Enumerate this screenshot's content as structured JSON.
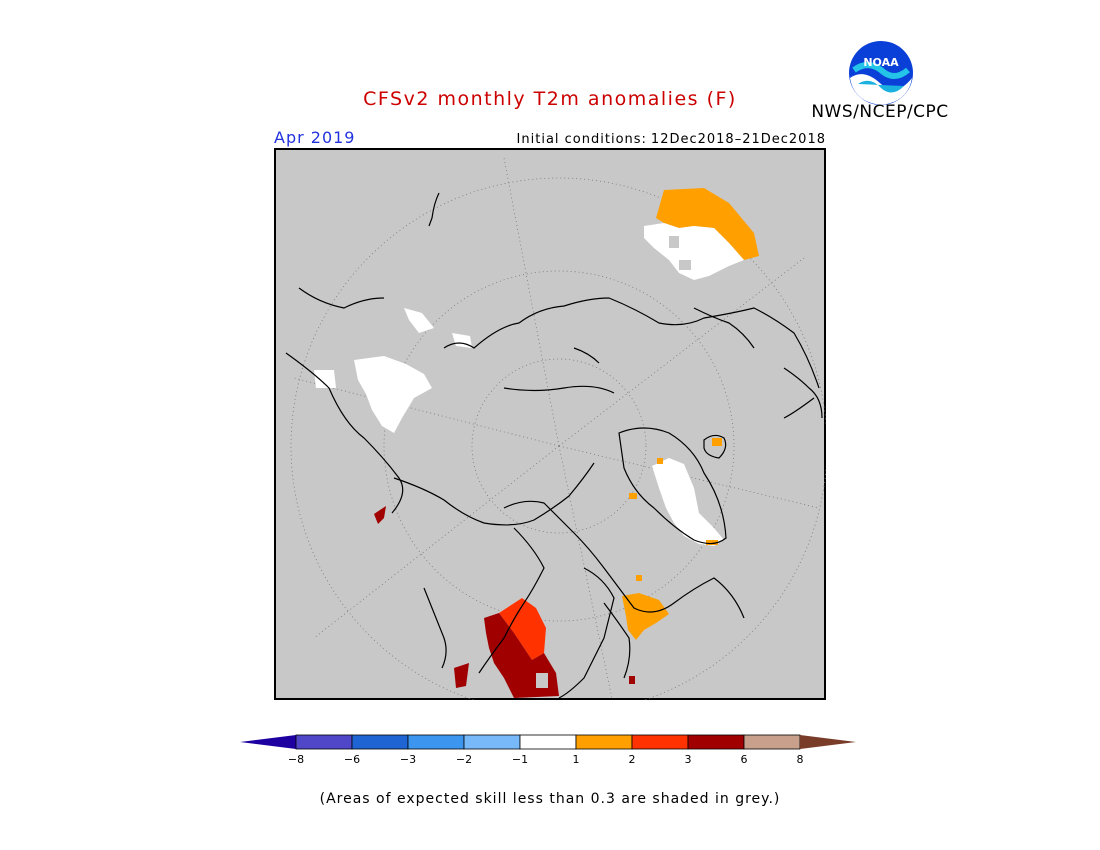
{
  "header": {
    "title": "CFSv2 monthly T2m anomalies (F)",
    "organization": "NWS/NCEP/CPC",
    "period": "Apr 2019",
    "initial_conditions_label": "Initial conditions:",
    "initial_conditions_value": "12Dec2018–21Dec2018"
  },
  "logo": {
    "text": "NOAA",
    "icon": "noaa-logo-icon"
  },
  "map": {
    "projection": "north-polar-stereographic",
    "background_color": "#c8c8c8",
    "outline_color": "#000000",
    "grid": "dotted latitude/longitude circles",
    "anomaly_regions": [
      {
        "region": "Eastern Siberia",
        "category": "1 to 2",
        "color": "#ffa000"
      },
      {
        "region": "Eastern Siberia",
        "category": "-1 to 1",
        "color": "#ffffff"
      },
      {
        "region": "Greenland",
        "category": "-1 to 1",
        "color": "#ffffff"
      },
      {
        "region": "Iceland",
        "category": "1 to 2",
        "color": "#ffa000"
      },
      {
        "region": "Hudson Bay",
        "category": "1 to 2",
        "color": "#ffa000"
      },
      {
        "region": "Western Canada / Alaska",
        "category": "-1 to 1",
        "color": "#ffffff"
      },
      {
        "region": "US Southwest",
        "category": "3 to 6",
        "color": "#a00000"
      },
      {
        "region": "US Southwest",
        "category": "2 to 3",
        "color": "#ff3200"
      },
      {
        "region": "Mexico",
        "category": "3 to 6",
        "color": "#a00000"
      },
      {
        "region": "Pacific Coast",
        "category": "3 to 6",
        "color": "#a00000"
      }
    ]
  },
  "colorbar": {
    "colors": [
      "#1e00a0",
      "#5046c8",
      "#1e64d2",
      "#3c96f0",
      "#78b9fa",
      "#ffffff",
      "#ffa000",
      "#ff3200",
      "#a00000",
      "#c8a08c",
      "#783c28"
    ],
    "labels": [
      "−8",
      "−6",
      "−3",
      "−2",
      "−1",
      "1",
      "2",
      "3",
      "6",
      "8"
    ]
  },
  "footnote": "(Areas of expected skill less than 0.3 are shaded in grey.)"
}
